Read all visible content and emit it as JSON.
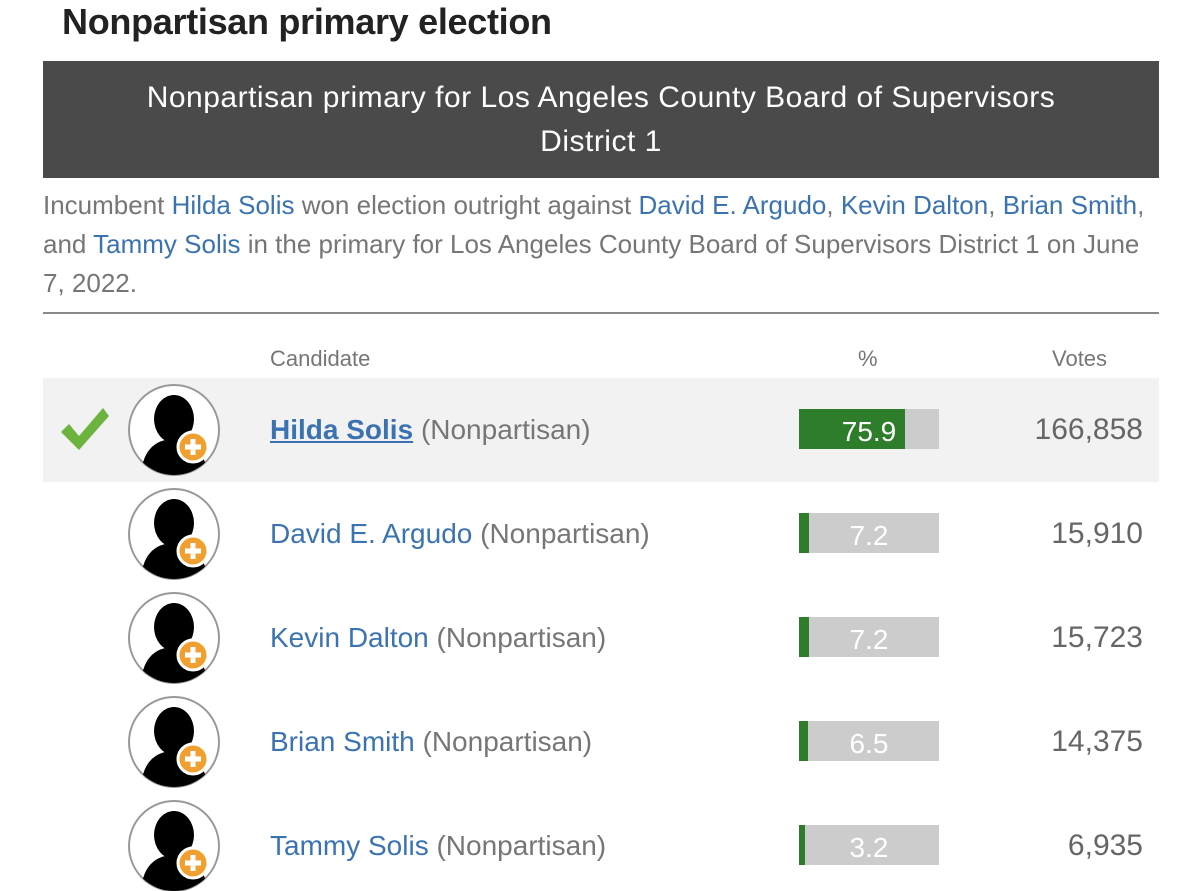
{
  "heading": "Nonpartisan primary election",
  "race_title": "Nonpartisan primary for Los Angeles County Board of Supervisors District 1",
  "summary": {
    "prefix": "Incumbent ",
    "winner": "Hilda Solis",
    "mid": " won election outright against ",
    "opponents": [
      "David E. Argudo",
      "Kevin Dalton",
      "Brian Smith",
      "Tammy Solis"
    ],
    "sep1": ", ",
    "sep2": ", ",
    "sep3": ", and ",
    "suffix": " in the primary for Los Angeles County Board of Supervisors District 1 on June 7, 2022."
  },
  "columns": {
    "candidate": "Candidate",
    "percent": "%",
    "votes": "Votes"
  },
  "colors": {
    "header_bg": "#4a4a4a",
    "link": "#3b73b2",
    "bar_fill": "#2e7d2b",
    "bar_bg": "#cccccc",
    "check": "#6cb33f",
    "badge": "#f0a030"
  },
  "candidates": [
    {
      "name": "Hilda Solis",
      "party": "(Nonpartisan)",
      "percent": 75.9,
      "percent_label": "75.9",
      "votes": "166,858",
      "winner": true,
      "icon": "checkmark-icon"
    },
    {
      "name": "David E. Argudo",
      "party": "(Nonpartisan)",
      "percent": 7.2,
      "percent_label": "7.2",
      "votes": "15,910",
      "winner": false
    },
    {
      "name": "Kevin Dalton",
      "party": "(Nonpartisan)",
      "percent": 7.2,
      "percent_label": "7.2",
      "votes": "15,723",
      "winner": false
    },
    {
      "name": "Brian Smith",
      "party": "(Nonpartisan)",
      "percent": 6.5,
      "percent_label": "6.5",
      "votes": "14,375",
      "winner": false
    },
    {
      "name": "Tammy Solis",
      "party": "(Nonpartisan)",
      "percent": 3.2,
      "percent_label": "3.2",
      "votes": "6,935",
      "winner": false
    }
  ]
}
